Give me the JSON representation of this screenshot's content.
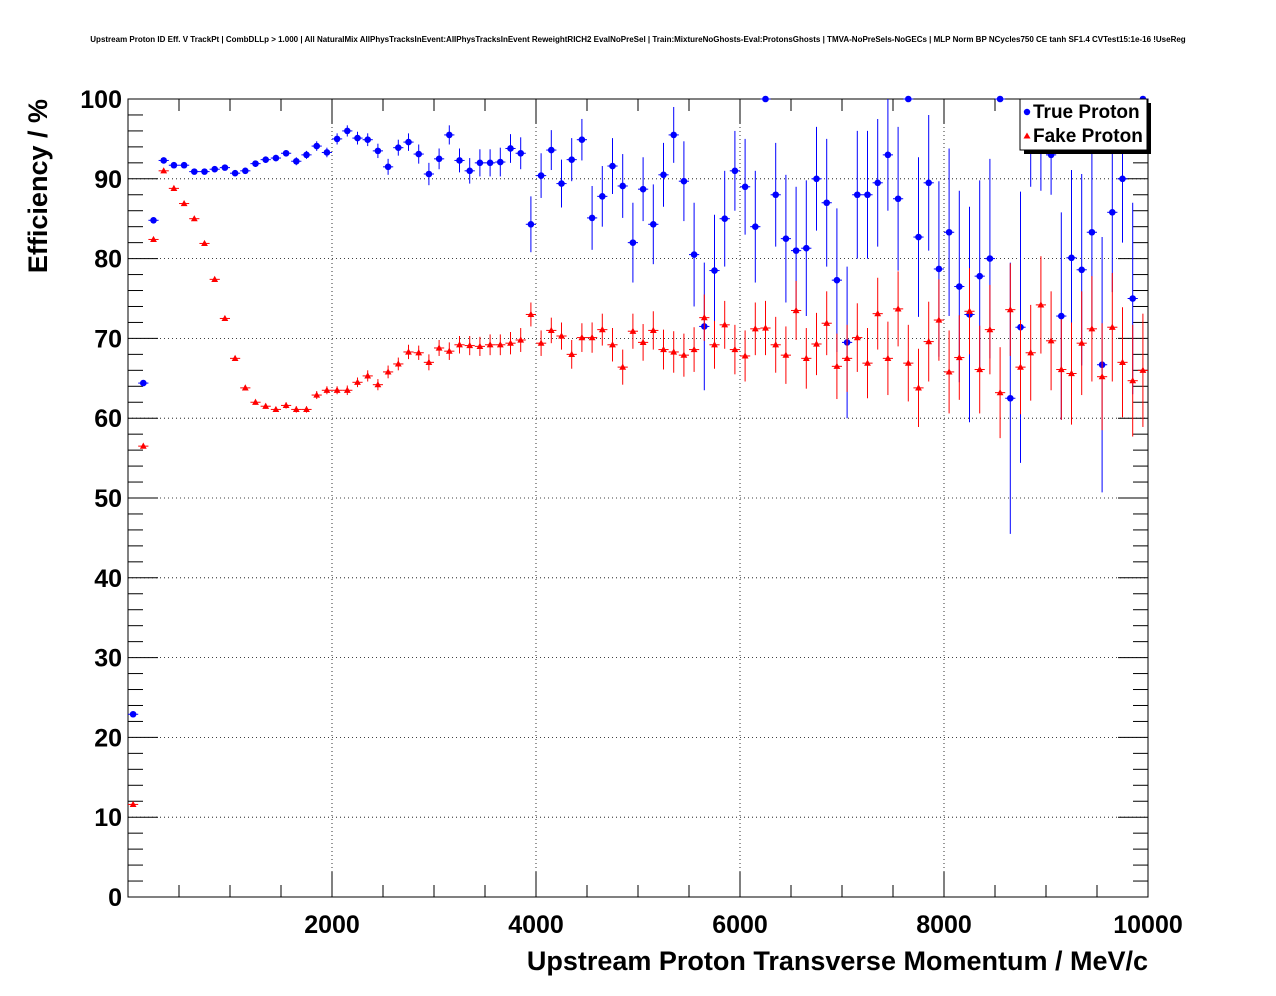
{
  "chart_data": {
    "type": "scatter",
    "title": "Upstream Proton ID Eff. V TrackPt | CombDLLp > 1.000 | All NaturalMix AllPhysTracksInEvent:AllPhysTracksInEvent ReweightRICH2 EvalNoPreSel | Train:MixtureNoGhosts-Eval:ProtonsGhosts | TMVA-NoPreSels-NoGECs | MLP Norm BP NCycles750 CE tanh SF1.4 CVTest15:1e-16 !UseReg",
    "xlabel": "Upstream Proton Transverse Momentum / MeV/c",
    "ylabel": "Efficiency / %",
    "xlim": [
      0,
      10000
    ],
    "ylim": [
      0,
      100
    ],
    "xticks": [
      2000,
      4000,
      6000,
      8000,
      10000
    ],
    "yticks": [
      0,
      10,
      20,
      30,
      40,
      50,
      60,
      70,
      80,
      90,
      100
    ],
    "grid": true,
    "legend_position": "top-right",
    "series": [
      {
        "name": "True Proton",
        "color": "#0000ff",
        "marker": "circle",
        "points": [
          [
            50,
            22.9,
            0.3
          ],
          [
            150,
            64.4,
            0.3
          ],
          [
            250,
            84.8,
            0.3
          ],
          [
            350,
            92.3,
            0.3
          ],
          [
            450,
            91.7,
            0.3
          ],
          [
            550,
            91.7,
            0.3
          ],
          [
            650,
            90.9,
            0.3
          ],
          [
            750,
            90.9,
            0.3
          ],
          [
            850,
            91.2,
            0.3
          ],
          [
            950,
            91.4,
            0.3
          ],
          [
            1050,
            90.7,
            0.3
          ],
          [
            1150,
            91.0,
            0.3
          ],
          [
            1250,
            91.9,
            0.4
          ],
          [
            1350,
            92.4,
            0.4
          ],
          [
            1450,
            92.6,
            0.4
          ],
          [
            1550,
            93.2,
            0.4
          ],
          [
            1650,
            92.2,
            0.5
          ],
          [
            1750,
            93.0,
            0.5
          ],
          [
            1850,
            94.1,
            0.6
          ],
          [
            1950,
            93.3,
            0.6
          ],
          [
            2050,
            95.0,
            0.7
          ],
          [
            2150,
            96.0,
            0.7
          ],
          [
            2250,
            95.1,
            0.8
          ],
          [
            2350,
            94.9,
            0.8
          ],
          [
            2450,
            93.5,
            0.9
          ],
          [
            2550,
            91.5,
            1.0
          ],
          [
            2650,
            93.9,
            1.0
          ],
          [
            2750,
            94.6,
            1.1
          ],
          [
            2850,
            93.1,
            1.2
          ],
          [
            2950,
            90.6,
            1.4
          ],
          [
            3050,
            92.5,
            1.3
          ],
          [
            3150,
            95.5,
            1.2
          ],
          [
            3250,
            92.3,
            1.5
          ],
          [
            3350,
            91.0,
            1.6
          ],
          [
            3450,
            92.0,
            1.7
          ],
          [
            3550,
            92.0,
            1.7
          ],
          [
            3650,
            92.1,
            1.8
          ],
          [
            3750,
            93.8,
            1.8
          ],
          [
            3850,
            93.2,
            2.0
          ],
          [
            3950,
            84.3,
            3.5
          ],
          [
            4050,
            90.4,
            2.8
          ],
          [
            4150,
            93.6,
            2.5
          ],
          [
            4250,
            89.4,
            3.0
          ],
          [
            4350,
            92.4,
            2.7
          ],
          [
            4450,
            94.9,
            2.6
          ],
          [
            4550,
            85.1,
            4.0
          ],
          [
            4650,
            87.8,
            3.8
          ],
          [
            4750,
            91.6,
            3.5
          ],
          [
            4850,
            89.1,
            4.0
          ],
          [
            4950,
            82.0,
            5.0
          ],
          [
            5050,
            88.7,
            4.0
          ],
          [
            5150,
            84.3,
            5.0
          ],
          [
            5250,
            90.5,
            4.0
          ],
          [
            5350,
            95.5,
            3.5
          ],
          [
            5450,
            89.7,
            5.0
          ],
          [
            5550,
            80.5,
            6.5
          ],
          [
            5650,
            71.5,
            8.0
          ],
          [
            5750,
            78.5,
            7.0
          ],
          [
            5850,
            85.0,
            6.0
          ],
          [
            5950,
            91.0,
            5.0
          ],
          [
            6050,
            89.0,
            6.0
          ],
          [
            6150,
            84.0,
            7.0
          ],
          [
            6250,
            100.0,
            0.0
          ],
          [
            6350,
            88.0,
            6.5
          ],
          [
            6450,
            82.5,
            8.0
          ],
          [
            6550,
            81.0,
            8.0
          ],
          [
            6650,
            81.3,
            8.5
          ],
          [
            6750,
            90.0,
            6.5
          ],
          [
            6850,
            87.0,
            8.0
          ],
          [
            6950,
            77.3,
            9.0
          ],
          [
            7050,
            69.5,
            9.5
          ],
          [
            7150,
            88.0,
            8.0
          ],
          [
            7250,
            88.0,
            8.0
          ],
          [
            7350,
            89.5,
            8.0
          ],
          [
            7450,
            93.0,
            7.0
          ],
          [
            7550,
            87.5,
            9.0
          ],
          [
            7650,
            100.0,
            0.0
          ],
          [
            7750,
            82.7,
            10.0
          ],
          [
            7850,
            89.5,
            8.5
          ],
          [
            7950,
            78.7,
            11.0
          ],
          [
            8050,
            83.3,
            10.5
          ],
          [
            8150,
            76.5,
            12.0
          ],
          [
            8250,
            73.0,
            13.5
          ],
          [
            8350,
            77.8,
            12.0
          ],
          [
            8450,
            80.0,
            12.5
          ],
          [
            8550,
            100.0,
            0.0
          ],
          [
            8650,
            62.5,
            17.0
          ],
          [
            8750,
            71.4,
            17.0
          ],
          [
            8850,
            94.0,
            5.0
          ],
          [
            8950,
            93.5,
            5.0
          ],
          [
            9050,
            93.0,
            5.0
          ],
          [
            9150,
            72.8,
            13.0
          ],
          [
            9250,
            80.1,
            11.0
          ],
          [
            9350,
            78.6,
            12.0
          ],
          [
            9450,
            83.3,
            12.0
          ],
          [
            9550,
            66.7,
            16.0
          ],
          [
            9650,
            85.8,
            10.0
          ],
          [
            9750,
            90.0,
            8.0
          ],
          [
            9850,
            75.0,
            12.0
          ],
          [
            9950,
            100.0,
            0.0
          ]
        ]
      },
      {
        "name": "Fake Proton",
        "color": "#ff0000",
        "marker": "triangle",
        "points": [
          [
            50,
            11.6,
            0.2
          ],
          [
            150,
            56.5,
            0.2
          ],
          [
            250,
            82.4,
            0.2
          ],
          [
            350,
            91.0,
            0.2
          ],
          [
            450,
            88.8,
            0.2
          ],
          [
            550,
            86.9,
            0.2
          ],
          [
            650,
            85.0,
            0.2
          ],
          [
            750,
            81.9,
            0.2
          ],
          [
            850,
            77.4,
            0.2
          ],
          [
            950,
            72.5,
            0.2
          ],
          [
            1050,
            67.5,
            0.3
          ],
          [
            1150,
            63.8,
            0.3
          ],
          [
            1250,
            62.0,
            0.3
          ],
          [
            1350,
            61.5,
            0.3
          ],
          [
            1450,
            61.1,
            0.3
          ],
          [
            1550,
            61.6,
            0.4
          ],
          [
            1650,
            61.1,
            0.4
          ],
          [
            1750,
            61.1,
            0.4
          ],
          [
            1850,
            62.9,
            0.5
          ],
          [
            1950,
            63.5,
            0.5
          ],
          [
            2050,
            63.5,
            0.5
          ],
          [
            2150,
            63.5,
            0.6
          ],
          [
            2250,
            64.5,
            0.6
          ],
          [
            2350,
            65.3,
            0.7
          ],
          [
            2450,
            64.2,
            0.7
          ],
          [
            2550,
            65.8,
            0.8
          ],
          [
            2650,
            66.8,
            0.8
          ],
          [
            2750,
            68.3,
            0.9
          ],
          [
            2850,
            68.2,
            0.9
          ],
          [
            2950,
            67.0,
            1.0
          ],
          [
            3050,
            68.8,
            1.0
          ],
          [
            3150,
            68.4,
            1.1
          ],
          [
            3250,
            69.2,
            1.1
          ],
          [
            3350,
            69.1,
            1.2
          ],
          [
            3450,
            69.0,
            1.2
          ],
          [
            3550,
            69.2,
            1.3
          ],
          [
            3650,
            69.2,
            1.3
          ],
          [
            3750,
            69.4,
            1.4
          ],
          [
            3850,
            69.8,
            1.5
          ],
          [
            3950,
            73.0,
            1.5
          ],
          [
            4050,
            69.4,
            1.6
          ],
          [
            4150,
            71.0,
            1.6
          ],
          [
            4250,
            70.3,
            1.7
          ],
          [
            4350,
            68.0,
            1.8
          ],
          [
            4450,
            70.1,
            1.8
          ],
          [
            4550,
            70.1,
            1.9
          ],
          [
            4650,
            71.1,
            2.0
          ],
          [
            4750,
            69.2,
            2.1
          ],
          [
            4850,
            66.4,
            2.2
          ],
          [
            4950,
            70.9,
            2.2
          ],
          [
            5050,
            69.5,
            2.3
          ],
          [
            5150,
            71.0,
            2.4
          ],
          [
            5250,
            68.6,
            2.5
          ],
          [
            5350,
            68.3,
            2.6
          ],
          [
            5450,
            67.9,
            2.7
          ],
          [
            5550,
            68.6,
            2.8
          ],
          [
            5650,
            72.6,
            2.9
          ],
          [
            5750,
            69.2,
            3.0
          ],
          [
            5850,
            71.7,
            3.0
          ],
          [
            5950,
            68.6,
            3.1
          ],
          [
            6050,
            67.8,
            3.2
          ],
          [
            6150,
            71.2,
            3.3
          ],
          [
            6250,
            71.3,
            3.4
          ],
          [
            6350,
            69.2,
            3.5
          ],
          [
            6450,
            67.9,
            3.6
          ],
          [
            6550,
            73.5,
            3.7
          ],
          [
            6650,
            67.5,
            3.8
          ],
          [
            6750,
            69.3,
            3.9
          ],
          [
            6850,
            71.9,
            4.0
          ],
          [
            6950,
            66.5,
            4.1
          ],
          [
            7050,
            67.5,
            4.2
          ],
          [
            7150,
            70.1,
            4.3
          ],
          [
            7250,
            66.9,
            4.4
          ],
          [
            7350,
            73.1,
            4.5
          ],
          [
            7450,
            67.5,
            4.6
          ],
          [
            7550,
            73.7,
            4.7
          ],
          [
            7650,
            66.9,
            4.8
          ],
          [
            7750,
            63.8,
            4.9
          ],
          [
            7850,
            69.6,
            5.0
          ],
          [
            7950,
            72.3,
            5.1
          ],
          [
            8050,
            65.8,
            5.2
          ],
          [
            8150,
            67.6,
            5.3
          ],
          [
            8250,
            73.4,
            5.4
          ],
          [
            8350,
            66.1,
            5.5
          ],
          [
            8450,
            71.1,
            5.6
          ],
          [
            8550,
            63.2,
            5.7
          ],
          [
            8650,
            73.6,
            5.8
          ],
          [
            8750,
            66.4,
            5.9
          ],
          [
            8850,
            68.2,
            6.0
          ],
          [
            8950,
            74.2,
            6.1
          ],
          [
            9050,
            69.7,
            6.2
          ],
          [
            9150,
            66.1,
            6.3
          ],
          [
            9250,
            65.6,
            6.4
          ],
          [
            9350,
            69.4,
            6.5
          ],
          [
            9450,
            71.2,
            6.6
          ],
          [
            9550,
            65.2,
            6.7
          ],
          [
            9650,
            71.4,
            6.8
          ],
          [
            9750,
            67.0,
            6.9
          ],
          [
            9850,
            64.7,
            7.0
          ],
          [
            9950,
            66.0,
            7.1
          ]
        ]
      }
    ]
  }
}
